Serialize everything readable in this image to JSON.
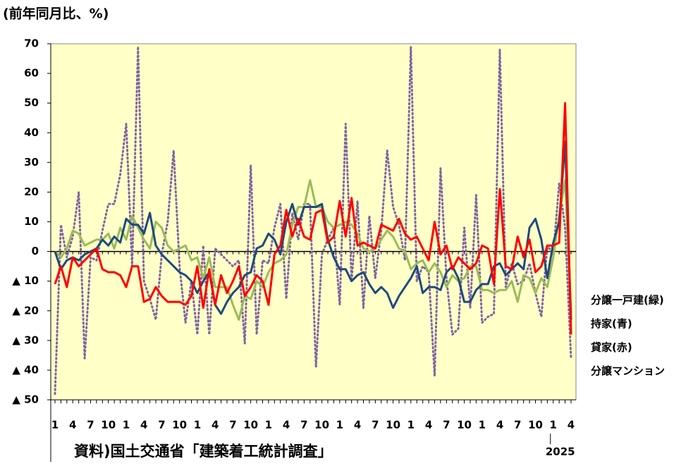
{
  "chart_data": {
    "type": "line",
    "title": "(前年同月比、%)",
    "source": "資料)国土交通省「建築着工統計調査」",
    "year_label": "2025",
    "categories": [
      "1",
      null,
      null,
      "4",
      null,
      null,
      "7",
      null,
      null,
      "10",
      null,
      null,
      "1",
      null,
      null,
      "4",
      null,
      null,
      "7",
      null,
      null,
      "10",
      null,
      null,
      "1",
      null,
      null,
      "4",
      null,
      null,
      "7",
      null,
      null,
      "10",
      null,
      null,
      "1",
      null,
      null,
      "4",
      null,
      null,
      "7",
      null,
      null,
      "10",
      null,
      null,
      "1",
      null,
      null,
      "4",
      null,
      null,
      "7",
      null,
      null,
      "10",
      null,
      null,
      "1",
      null,
      null,
      "4",
      null,
      null,
      "7",
      null,
      null,
      "10",
      null,
      null,
      "1",
      null,
      null,
      "4",
      null,
      null,
      "7",
      null,
      null,
      "10",
      null,
      null,
      "1",
      null,
      null,
      "4"
    ],
    "series": [
      {
        "name": "分譲一戸建(緑)",
        "color": "#9bbb59",
        "style": "solid",
        "values": [
          0,
          -2,
          1,
          7,
          6,
          2,
          3,
          4,
          4,
          6,
          1,
          8,
          4,
          12,
          8,
          4,
          1,
          10,
          8,
          2,
          0,
          1,
          2,
          -3,
          -2,
          -9,
          -2,
          -12,
          -12,
          -12,
          -18,
          -23,
          -15,
          -16,
          -10,
          -12,
          -7,
          -4,
          -3,
          -1,
          9,
          15,
          15,
          24,
          15,
          15,
          10,
          8,
          9,
          10,
          9,
          6,
          1,
          0,
          1,
          4,
          7,
          5,
          1,
          0,
          -6,
          -4,
          -3,
          -7,
          -4,
          -7,
          -12,
          -8,
          -10,
          -9,
          -5,
          -5,
          -13,
          -13,
          -14,
          -13,
          -13,
          -10,
          -17,
          -8,
          -9,
          -14,
          -9,
          -12,
          -2,
          12,
          24,
          -21
        ]
      },
      {
        "name": "持家(青)",
        "color": "#1f497d",
        "style": "solid",
        "values": [
          0,
          -6,
          -3,
          -2,
          -3,
          -1,
          0,
          1,
          4,
          2,
          5,
          3,
          11,
          9,
          9,
          6,
          13,
          2,
          -1,
          -3,
          -5,
          -7,
          -8,
          -10,
          -14,
          -10,
          -7,
          -18,
          -21,
          -17,
          -14,
          -12,
          -8,
          -7,
          1,
          2,
          6,
          4,
          -1,
          10,
          16,
          9,
          15,
          15,
          15,
          16,
          4,
          -2,
          -6,
          -6,
          -10,
          -8,
          -7,
          -11,
          -14,
          -12,
          -14,
          -19,
          -15,
          -12,
          -9,
          -5,
          -14,
          -12,
          -12,
          -13,
          -7,
          -5,
          -9,
          -17,
          -17,
          -13,
          -11,
          -11,
          -5,
          -4,
          -8,
          -6,
          -4,
          -6,
          8,
          11,
          4,
          -9,
          3,
          10,
          37,
          -23
        ]
      },
      {
        "name": "貸家(赤)",
        "color": "#ff0000",
        "style": "solid",
        "values": [
          -11,
          -5,
          -12,
          -2,
          -5,
          -3,
          -1,
          1,
          -6,
          -7,
          -7,
          -8,
          -12,
          -5,
          -5,
          -17,
          -16,
          -12,
          -15,
          -17,
          -17,
          -17,
          -18,
          -15,
          -5,
          -19,
          -6,
          -18,
          -8,
          -14,
          -10,
          -5,
          -15,
          -12,
          -8,
          -10,
          -18,
          -1,
          2,
          14,
          5,
          11,
          5,
          4,
          13,
          14,
          3,
          5,
          17,
          5,
          18,
          2,
          3,
          2,
          1,
          9,
          8,
          7,
          11,
          6,
          4,
          5,
          1,
          -3,
          10,
          -1,
          2,
          -6,
          -2,
          -4,
          -6,
          -4,
          2,
          1,
          -11,
          21,
          -5,
          -6,
          5,
          -2,
          4,
          -7,
          -5,
          2,
          2,
          3,
          50,
          -28
        ]
      },
      {
        "name": "分譲マンション",
        "color": "#8064a2",
        "style": "dotted",
        "values": [
          -48,
          9,
          -2,
          5,
          20,
          -36,
          -2,
          -3,
          7,
          16,
          16,
          26,
          43,
          -5,
          69,
          -10,
          -16,
          -23,
          -1,
          10,
          34,
          -5,
          -24,
          -10,
          -28,
          2,
          -28,
          1,
          -1,
          -3,
          -5,
          -3,
          -31,
          29,
          -28,
          -3,
          -4,
          8,
          16,
          -16,
          13,
          4,
          16,
          16,
          -39,
          -1,
          4,
          8,
          -18,
          43,
          -10,
          17,
          -19,
          12,
          -9,
          7,
          34,
          15,
          9,
          -3,
          69,
          -10,
          -5,
          -7,
          -42,
          28,
          -9,
          -28,
          -26,
          8,
          -19,
          19,
          -24,
          -22,
          -21,
          68,
          -12,
          -4,
          -11,
          -10,
          -4,
          -14,
          -22,
          2,
          -1,
          23,
          8,
          -36
        ]
      }
    ],
    "ylim": [
      -50,
      70
    ],
    "yticks": [
      70,
      60,
      50,
      40,
      30,
      20,
      10,
      0,
      {
        "value": -10,
        "label": "▲ 10"
      },
      {
        "value": -20,
        "label": "▲ 20"
      },
      {
        "value": -30,
        "label": "▲ 30"
      },
      {
        "value": -40,
        "label": "▲ 40"
      },
      {
        "value": -50,
        "label": "▲ 50"
      }
    ],
    "background": "#ffffc8"
  }
}
